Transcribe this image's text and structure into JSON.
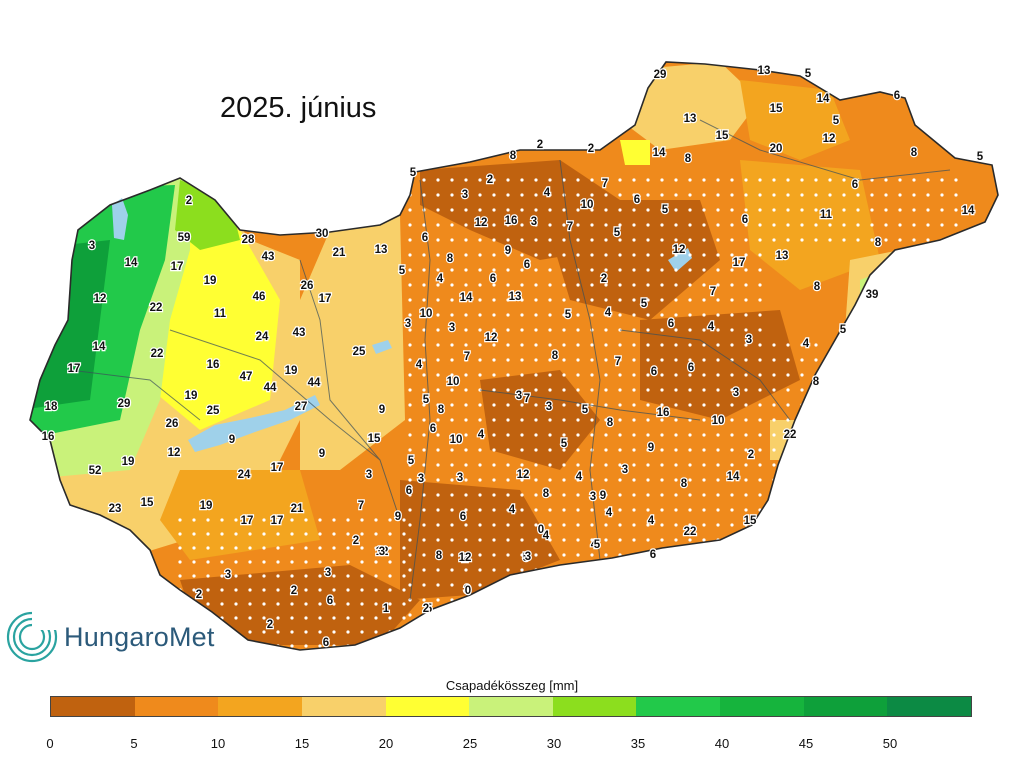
{
  "title": "2025. június",
  "brand": "HungaroMet",
  "legend": {
    "title": "Csapadékösszeg [mm]",
    "ticks": [
      "0",
      "5",
      "10",
      "15",
      "20",
      "25",
      "30",
      "35",
      "40",
      "45",
      "50"
    ],
    "colors": [
      "#c0620f",
      "#ef8a1c",
      "#f3a51f",
      "#f8d06a",
      "#ffff33",
      "#c9f27a",
      "#8cde1e",
      "#22c94a",
      "#16b43d",
      "#0ea03a",
      "#0c8a44"
    ]
  },
  "station_values": [
    "29",
    "13",
    "5",
    "6",
    "14",
    "15",
    "13",
    "5",
    "12",
    "20",
    "15",
    "8",
    "14",
    "8",
    "6",
    "2",
    "2",
    "8",
    "5",
    "5",
    "2",
    "3",
    "7",
    "6",
    "14",
    "4",
    "5",
    "6",
    "10",
    "11",
    "12",
    "16",
    "8",
    "6",
    "8",
    "9",
    "7",
    "5",
    "5",
    "4",
    "3",
    "12",
    "17",
    "13",
    "39",
    "8",
    "22",
    "6",
    "2",
    "6",
    "7",
    "14",
    "13",
    "10",
    "5",
    "5",
    "4",
    "3",
    "6",
    "4",
    "3",
    "5",
    "4",
    "12",
    "7",
    "3",
    "6",
    "7",
    "8",
    "8",
    "6",
    "3",
    "9",
    "4",
    "3",
    "5",
    "16",
    "10",
    "3",
    "10",
    "5",
    "6",
    "8",
    "4",
    "9",
    "2",
    "3",
    "5",
    "3",
    "8",
    "14",
    "15",
    "3",
    "9",
    "5",
    "6",
    "15",
    "8",
    "3",
    "9",
    "4",
    "3",
    "7",
    "12",
    "22",
    "6",
    "2",
    "5",
    "3",
    "4",
    "8",
    "4",
    "4",
    "4",
    "12",
    "10",
    "8",
    "6",
    "7",
    "4",
    "2",
    "3",
    "3",
    "6",
    "12",
    "5",
    "5",
    "3",
    "0",
    "3",
    "2",
    "2",
    "2",
    "6",
    "2",
    "1",
    "0",
    "3",
    "2",
    "59",
    "28",
    "30",
    "19",
    "14",
    "17",
    "43",
    "21",
    "13",
    "12",
    "22",
    "46",
    "26",
    "17",
    "14",
    "11",
    "24",
    "43",
    "25",
    "17",
    "22",
    "16",
    "47",
    "19",
    "18",
    "29",
    "19",
    "44",
    "44",
    "25",
    "27",
    "16",
    "26",
    "9",
    "52",
    "19",
    "12",
    "24",
    "17",
    "23",
    "15",
    "19",
    "17",
    "17",
    "21",
    "9",
    "7",
    "11",
    "8"
  ]
}
